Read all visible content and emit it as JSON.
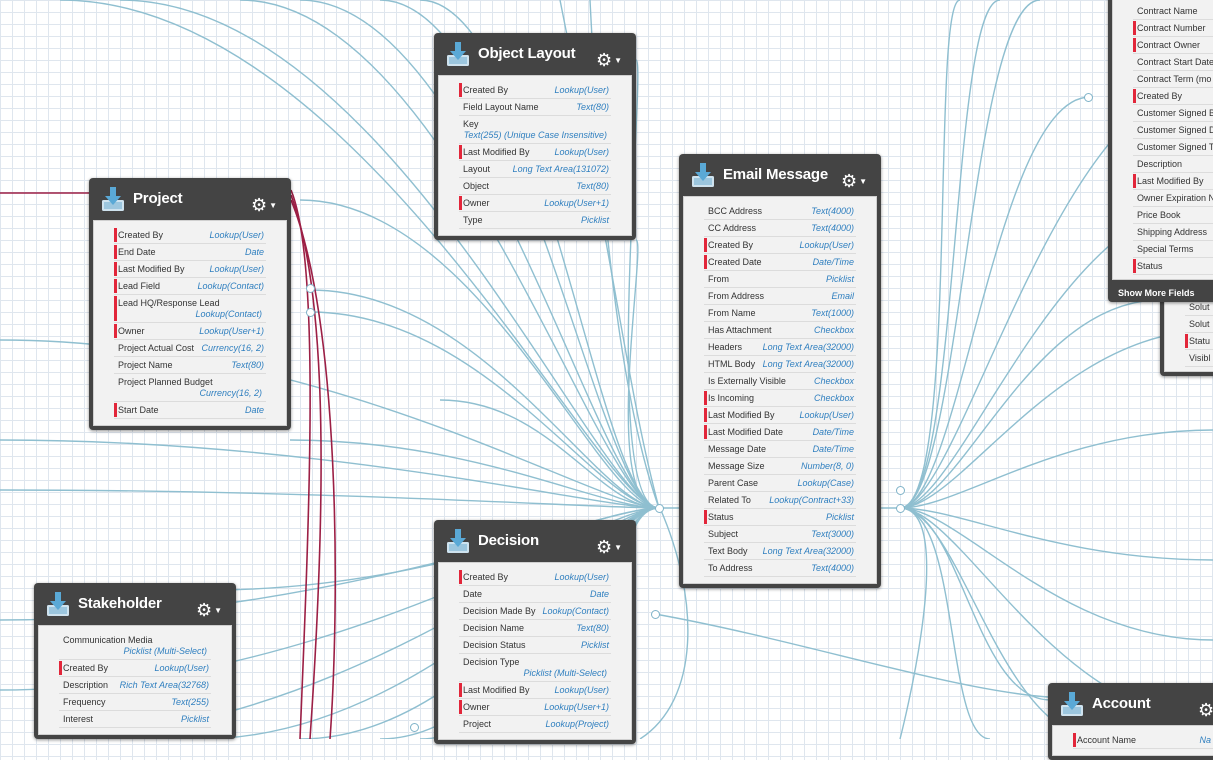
{
  "nodes": {
    "object_layout": {
      "title": "Object Layout",
      "fields": [
        {
          "name": "Created By",
          "type": "Lookup(User)",
          "required": true
        },
        {
          "name": "Field Layout Name",
          "type": "Text(80)",
          "required": false
        },
        {
          "name": "Key",
          "type": "Text(255) (Unique Case Insensitive)",
          "required": false
        },
        {
          "name": "Last Modified By",
          "type": "Lookup(User)",
          "required": true
        },
        {
          "name": "Layout",
          "type": "Long Text Area(131072)",
          "required": false
        },
        {
          "name": "Object",
          "type": "Text(80)",
          "required": false
        },
        {
          "name": "Owner",
          "type": "Lookup(User+1)",
          "required": true
        },
        {
          "name": "Type",
          "type": "Picklist",
          "required": false
        }
      ]
    },
    "project": {
      "title": "Project",
      "fields": [
        {
          "name": "Created By",
          "type": "Lookup(User)",
          "required": true
        },
        {
          "name": "End Date",
          "type": "Date",
          "required": true
        },
        {
          "name": "Last Modified By",
          "type": "Lookup(User)",
          "required": true
        },
        {
          "name": "Lead Field",
          "type": "Lookup(Contact)",
          "required": true
        },
        {
          "name": "Lead HQ/Response Lead",
          "type": "Lookup(Contact)",
          "required": true
        },
        {
          "name": "Owner",
          "type": "Lookup(User+1)",
          "required": true
        },
        {
          "name": "Project Actual Cost",
          "type": "Currency(16, 2)",
          "required": false
        },
        {
          "name": "Project Name",
          "type": "Text(80)",
          "required": false
        },
        {
          "name": "Project Planned Budget",
          "type": "Currency(16, 2)",
          "required": false
        },
        {
          "name": "Start Date",
          "type": "Date",
          "required": true
        }
      ]
    },
    "email_message": {
      "title": "Email Message",
      "fields": [
        {
          "name": "BCC Address",
          "type": "Text(4000)",
          "required": false
        },
        {
          "name": "CC Address",
          "type": "Text(4000)",
          "required": false
        },
        {
          "name": "Created By",
          "type": "Lookup(User)",
          "required": true
        },
        {
          "name": "Created Date",
          "type": "Date/Time",
          "required": true
        },
        {
          "name": "From",
          "type": "Picklist",
          "required": false
        },
        {
          "name": "From Address",
          "type": "Email",
          "required": false
        },
        {
          "name": "From Name",
          "type": "Text(1000)",
          "required": false
        },
        {
          "name": "Has Attachment",
          "type": "Checkbox",
          "required": false
        },
        {
          "name": "Headers",
          "type": "Long Text Area(32000)",
          "required": false
        },
        {
          "name": "HTML Body",
          "type": "Long Text Area(32000)",
          "required": false
        },
        {
          "name": "Is Externally Visible",
          "type": "Checkbox",
          "required": false
        },
        {
          "name": "Is Incoming",
          "type": "Checkbox",
          "required": true
        },
        {
          "name": "Last Modified By",
          "type": "Lookup(User)",
          "required": true
        },
        {
          "name": "Last Modified Date",
          "type": "Date/Time",
          "required": true
        },
        {
          "name": "Message Date",
          "type": "Date/Time",
          "required": false
        },
        {
          "name": "Message Size",
          "type": "Number(8, 0)",
          "required": false
        },
        {
          "name": "Parent Case",
          "type": "Lookup(Case)",
          "required": false
        },
        {
          "name": "Related To",
          "type": "Lookup(Contract+33)",
          "required": false
        },
        {
          "name": "Status",
          "type": "Picklist",
          "required": true
        },
        {
          "name": "Subject",
          "type": "Text(3000)",
          "required": false
        },
        {
          "name": "Text Body",
          "type": "Long Text Area(32000)",
          "required": false
        },
        {
          "name": "To Address",
          "type": "Text(4000)",
          "required": false
        }
      ]
    },
    "decision": {
      "title": "Decision",
      "fields": [
        {
          "name": "Created By",
          "type": "Lookup(User)",
          "required": true
        },
        {
          "name": "Date",
          "type": "Date",
          "required": false
        },
        {
          "name": "Decision Made By",
          "type": "Lookup(Contact)",
          "required": false
        },
        {
          "name": "Decision Name",
          "type": "Text(80)",
          "required": false
        },
        {
          "name": "Decision Status",
          "type": "Picklist",
          "required": false
        },
        {
          "name": "Decision Type",
          "type": "Picklist (Multi-Select)",
          "required": false
        },
        {
          "name": "Last Modified By",
          "type": "Lookup(User)",
          "required": true
        },
        {
          "name": "Owner",
          "type": "Lookup(User+1)",
          "required": true
        },
        {
          "name": "Project",
          "type": "Lookup(Project)",
          "required": false
        }
      ]
    },
    "stakeholder": {
      "title": "Stakeholder",
      "fields": [
        {
          "name": "Communication Media",
          "type": "Picklist (Multi-Select)",
          "required": false
        },
        {
          "name": "Created By",
          "type": "Lookup(User)",
          "required": true
        },
        {
          "name": "Description",
          "type": "Rich Text Area(32768)",
          "required": false
        },
        {
          "name": "Frequency",
          "type": "Text(255)",
          "required": false
        },
        {
          "name": "Interest",
          "type": "Picklist",
          "required": false
        }
      ]
    },
    "contract": {
      "title": "",
      "more_label": "Show More Fields",
      "fields": [
        {
          "name": "Contract Name",
          "type": "",
          "required": false
        },
        {
          "name": "Contract Number",
          "type": "",
          "required": true
        },
        {
          "name": "Contract Owner",
          "type": "",
          "required": true
        },
        {
          "name": "Contract Start Date",
          "type": "",
          "required": false
        },
        {
          "name": "Contract Term (mo",
          "type": "",
          "required": false
        },
        {
          "name": "Created By",
          "type": "",
          "required": true
        },
        {
          "name": "Customer Signed B",
          "type": "",
          "required": false
        },
        {
          "name": "Customer Signed D",
          "type": "",
          "required": false
        },
        {
          "name": "Customer Signed T",
          "type": "",
          "required": false
        },
        {
          "name": "Description",
          "type": "Long",
          "required": false
        },
        {
          "name": "Last Modified By",
          "type": "",
          "required": true
        },
        {
          "name": "Owner Expiration N",
          "type": "",
          "required": false
        },
        {
          "name": "Price Book",
          "type": "L",
          "required": false
        },
        {
          "name": "Shipping Address",
          "type": "",
          "required": false
        },
        {
          "name": "Special Terms",
          "type": "",
          "required": false
        },
        {
          "name": "Status",
          "type": "",
          "required": true
        }
      ]
    },
    "solution": {
      "title": "",
      "fields": [
        {
          "name": "Solut",
          "type": "",
          "required": false
        },
        {
          "name": "Solut",
          "type": "",
          "required": false
        },
        {
          "name": "Statu",
          "type": "",
          "required": true
        },
        {
          "name": "Visibl",
          "type": "",
          "required": false
        }
      ]
    },
    "account": {
      "title": "Account",
      "fields": [
        {
          "name": "Account Name",
          "type": "Na",
          "required": true
        }
      ]
    }
  },
  "colors": {
    "line_blue": "#8fbfd0",
    "line_red": "#9c1f45",
    "required_marker": "#e2263a",
    "type_text": "#2f7fbf",
    "header_bg": "#444444"
  },
  "icons": {
    "header_icon": "download-icon",
    "menu_icon": "gear-icon"
  }
}
